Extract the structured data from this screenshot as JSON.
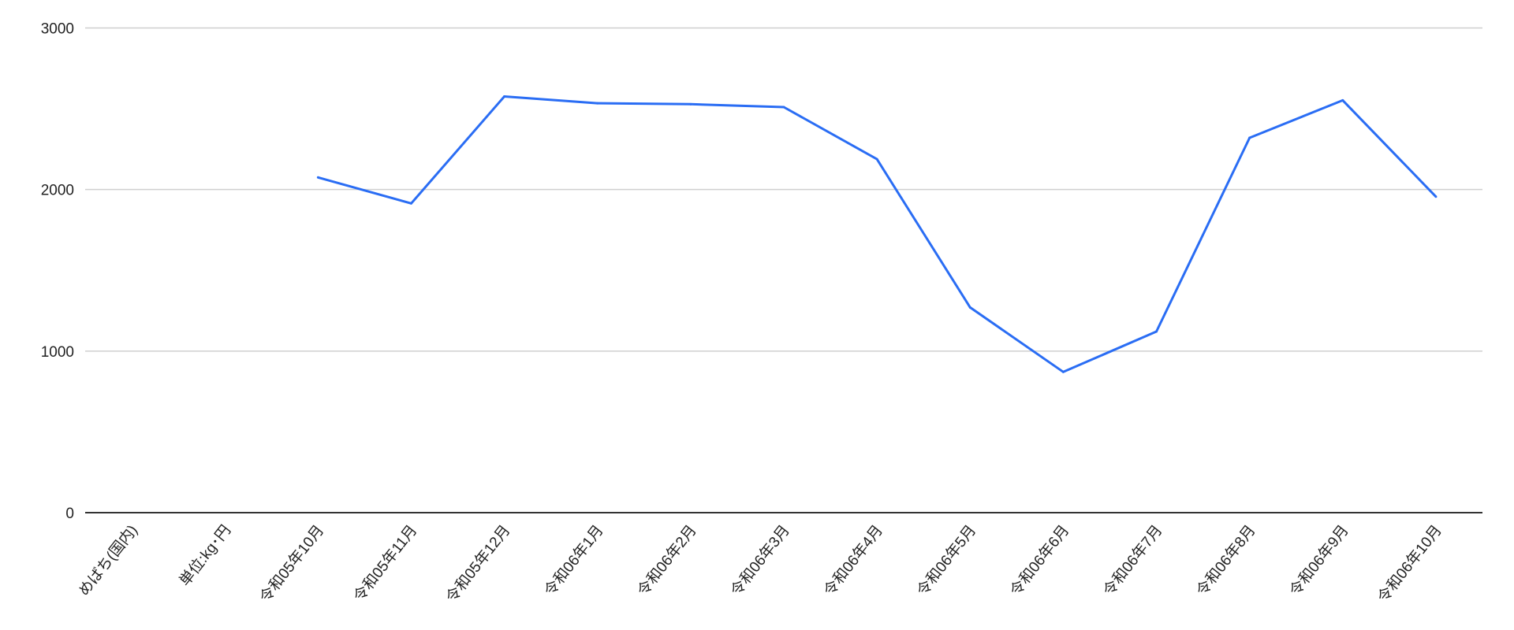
{
  "chart_data": {
    "type": "line",
    "title": "",
    "xlabel": "",
    "ylabel": "",
    "ylim": [
      0,
      3000
    ],
    "yticks": [
      "0",
      "1000",
      "2000",
      "3000"
    ],
    "grid": true,
    "legend": "none",
    "line_color": "#2a6df4",
    "categories": [
      "めばち(国内)",
      "単位:kg･円",
      "令和05年10月",
      "令和05年11月",
      "令和05年12月",
      "令和06年1月",
      "令和06年2月",
      "令和06年3月",
      "令和06年4月",
      "令和06年5月",
      "令和06年6月",
      "令和06年7月",
      "令和06年8月",
      "令和06年9月",
      "令和06年10月"
    ],
    "series": [
      {
        "values": [
          null,
          null,
          2075,
          1914,
          2576,
          2534,
          2528,
          2510,
          2188,
          1270,
          871,
          1121,
          2320,
          2552,
          1956
        ]
      }
    ]
  }
}
